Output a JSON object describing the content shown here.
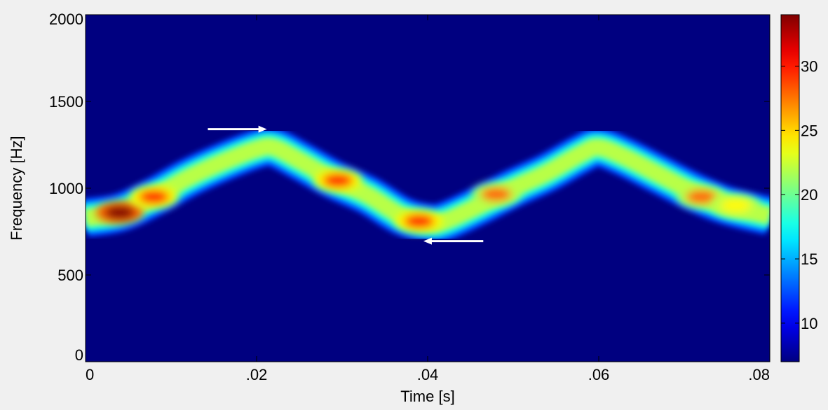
{
  "chart_data": {
    "type": "heatmap",
    "title": "",
    "xlabel": "Time [s]",
    "ylabel": "Frequency [Hz]",
    "xlim": [
      0,
      0.08
    ],
    "ylim": [
      0,
      2000
    ],
    "x_ticks": [
      {
        "value": 0,
        "label": "0"
      },
      {
        "value": 0.02,
        "label": ".02"
      },
      {
        "value": 0.04,
        "label": ".04"
      },
      {
        "value": 0.06,
        "label": ".06"
      },
      {
        "value": 0.08,
        "label": ".08"
      }
    ],
    "y_ticks": [
      {
        "value": 0,
        "label": "0"
      },
      {
        "value": 500,
        "label": "500"
      },
      {
        "value": 1000,
        "label": "1000"
      },
      {
        "value": 1500,
        "label": "1500"
      },
      {
        "value": 2000,
        "label": "2000"
      }
    ],
    "grid": false,
    "colormap": "jet",
    "colorbar": {
      "min": 7,
      "max": 34,
      "ticks": [
        {
          "value": 10,
          "label": "10"
        },
        {
          "value": 15,
          "label": "15"
        },
        {
          "value": 20,
          "label": "20"
        },
        {
          "value": 25,
          "label": "25"
        },
        {
          "value": 30,
          "label": "30"
        }
      ]
    },
    "background_level": 7,
    "ridge": {
      "band_halfwidth_hz": 90,
      "peak_level": 22,
      "centerline": [
        {
          "t": 0.0,
          "f": 830
        },
        {
          "t": 0.004,
          "f": 860
        },
        {
          "t": 0.008,
          "f": 950
        },
        {
          "t": 0.012,
          "f": 1060
        },
        {
          "t": 0.016,
          "f": 1150
        },
        {
          "t": 0.02,
          "f": 1225
        },
        {
          "t": 0.022,
          "f": 1235
        },
        {
          "t": 0.025,
          "f": 1160
        },
        {
          "t": 0.029,
          "f": 1050
        },
        {
          "t": 0.033,
          "f": 960
        },
        {
          "t": 0.037,
          "f": 840
        },
        {
          "t": 0.04,
          "f": 800
        },
        {
          "t": 0.042,
          "f": 810
        },
        {
          "t": 0.046,
          "f": 900
        },
        {
          "t": 0.05,
          "f": 1000
        },
        {
          "t": 0.054,
          "f": 1090
        },
        {
          "t": 0.058,
          "f": 1200
        },
        {
          "t": 0.06,
          "f": 1235
        },
        {
          "t": 0.063,
          "f": 1180
        },
        {
          "t": 0.067,
          "f": 1080
        },
        {
          "t": 0.071,
          "f": 980
        },
        {
          "t": 0.075,
          "f": 900
        },
        {
          "t": 0.08,
          "f": 840
        }
      ],
      "hotspots": [
        {
          "t": 0.004,
          "f": 860,
          "level": 34
        },
        {
          "t": 0.008,
          "f": 950,
          "level": 30
        },
        {
          "t": 0.0295,
          "f": 1045,
          "level": 30
        },
        {
          "t": 0.039,
          "f": 810,
          "level": 30
        },
        {
          "t": 0.048,
          "f": 965,
          "level": 28
        },
        {
          "t": 0.072,
          "f": 950,
          "level": 28
        },
        {
          "t": 0.076,
          "f": 900,
          "level": 24
        }
      ]
    },
    "annotations": [
      {
        "type": "arrow",
        "direction": "right",
        "from": {
          "t": 0.0143,
          "f": 1340
        },
        "to": {
          "t": 0.0212,
          "f": 1340
        }
      },
      {
        "type": "arrow",
        "direction": "left",
        "from": {
          "t": 0.0465,
          "f": 695
        },
        "to": {
          "t": 0.0395,
          "f": 695
        }
      }
    ]
  }
}
